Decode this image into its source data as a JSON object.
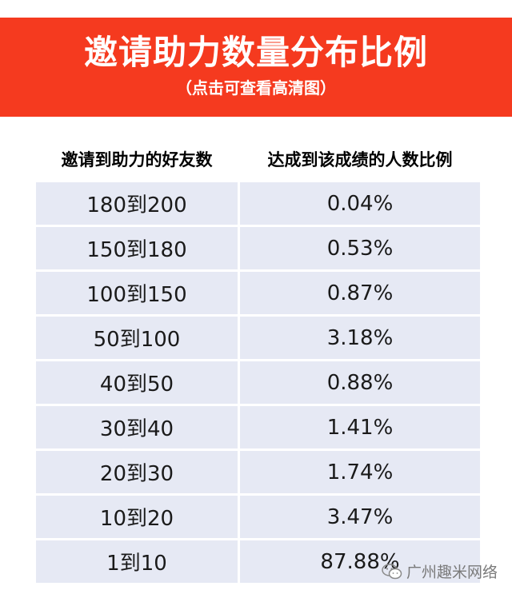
{
  "banner": {
    "title": "邀请助力数量分布比例",
    "subtitle": "（点击可查看高清图）"
  },
  "table": {
    "headers": [
      "邀请到助力的好友数",
      "达成到该成绩的人数比例"
    ],
    "rows": [
      [
        "180到200",
        "0.04%"
      ],
      [
        "150到180",
        "0.53%"
      ],
      [
        "100到150",
        "0.87%"
      ],
      [
        "50到100",
        "3.18%"
      ],
      [
        "40到50",
        "0.88%"
      ],
      [
        "30到40",
        "1.41%"
      ],
      [
        "20到30",
        "1.74%"
      ],
      [
        "10到20",
        "3.47%"
      ],
      [
        "1到10",
        "87.88%"
      ]
    ]
  },
  "watermark": {
    "icon": "wechat-icon",
    "text": "广州趣米网络"
  },
  "colors": {
    "banner": "#f53a1f",
    "cell": "#e6e9f4"
  }
}
